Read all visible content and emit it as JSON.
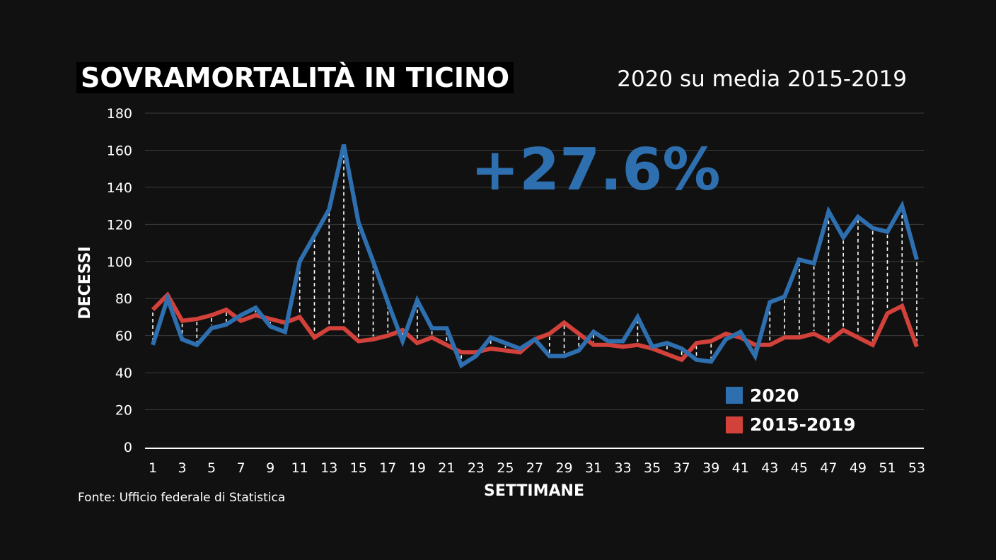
{
  "title": "SOVRAMORTALITÀ IN TICINO",
  "subtitle": "2020 su media 2015-2019",
  "source": "Fonte: Ufficio federale di Statistica",
  "colors": {
    "series_2020": "#2e6fb0",
    "series_avg": "#d2413a",
    "background": "#111111",
    "grid": "#3a3a3a",
    "drop_lines": "#ffffff"
  },
  "chart_data": {
    "type": "line",
    "xlabel": "SETTIMANE",
    "ylabel": "DECESSI",
    "ylim": [
      0,
      180
    ],
    "yticks": [
      0,
      20,
      40,
      60,
      80,
      100,
      120,
      140,
      160,
      180
    ],
    "xticks": [
      1,
      3,
      5,
      7,
      9,
      11,
      13,
      15,
      17,
      19,
      21,
      23,
      25,
      27,
      29,
      31,
      33,
      35,
      37,
      39,
      41,
      43,
      45,
      47,
      49,
      51,
      53
    ],
    "grid": true,
    "legend_position": "bottom-right",
    "annotation": "+27.6%",
    "x": [
      1,
      2,
      3,
      4,
      5,
      6,
      7,
      8,
      9,
      10,
      11,
      12,
      13,
      14,
      15,
      16,
      17,
      18,
      19,
      20,
      21,
      22,
      23,
      24,
      25,
      26,
      27,
      28,
      29,
      30,
      31,
      32,
      33,
      34,
      35,
      36,
      37,
      38,
      39,
      40,
      41,
      42,
      43,
      44,
      45,
      46,
      47,
      48,
      49,
      50,
      51,
      52,
      53
    ],
    "series": [
      {
        "name": "2020",
        "values": [
          55,
          80,
          58,
          55,
          64,
          66,
          71,
          75,
          65,
          62,
          100,
          114,
          128,
          163,
          121,
          100,
          78,
          57,
          79,
          64,
          64,
          44,
          49,
          59,
          56,
          53,
          58,
          49,
          49,
          52,
          62,
          57,
          57,
          70,
          54,
          56,
          53,
          47,
          46,
          58,
          62,
          49,
          78,
          81,
          101,
          99,
          127,
          113,
          124,
          118,
          116,
          130,
          101
        ]
      },
      {
        "name": "2015-2019",
        "values": [
          74,
          82,
          68,
          69,
          71,
          74,
          68,
          71,
          69,
          67,
          70,
          59,
          64,
          64,
          57,
          58,
          60,
          63,
          56,
          59,
          55,
          51,
          51,
          53,
          52,
          51,
          58,
          61,
          67,
          61,
          55,
          55,
          54,
          55,
          53,
          50,
          47,
          56,
          57,
          61,
          59,
          55,
          55,
          59,
          59,
          61,
          57,
          63,
          59,
          55,
          72,
          76,
          54
        ]
      }
    ]
  }
}
